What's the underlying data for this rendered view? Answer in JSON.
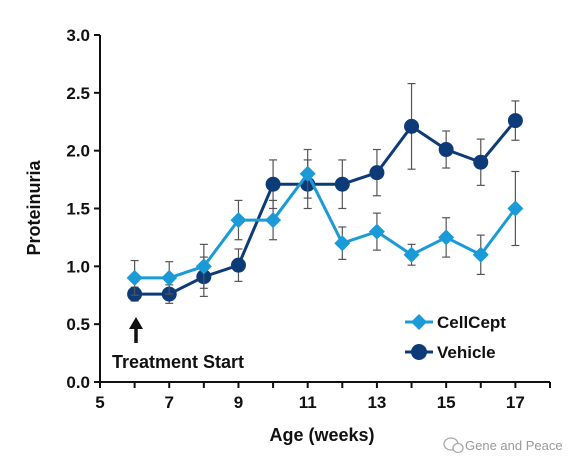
{
  "chart_data": {
    "type": "line",
    "xlabel": "Age (weeks)",
    "ylabel": "Proteinuria",
    "xlim": [
      5,
      18
    ],
    "ylim": [
      0,
      3
    ],
    "x_ticks": [
      "5",
      "7",
      "9",
      "11",
      "13",
      "15",
      "17"
    ],
    "y_ticks": [
      "0.0",
      "0.5",
      "1.0",
      "1.5",
      "2.0",
      "2.5",
      "3.0"
    ],
    "x_tick_values": [
      5,
      7,
      9,
      11,
      13,
      15,
      17
    ],
    "y_tick_values": [
      0,
      0.5,
      1,
      1.5,
      2,
      2.5,
      3
    ],
    "grid": false,
    "legend_position": "bottom-right",
    "annotation": {
      "text": "Treatment Start",
      "x": 6
    },
    "series": [
      {
        "name": "CellCept",
        "marker": "diamond",
        "color": "#1a9ad6",
        "x": [
          6,
          7,
          8,
          9,
          10,
          11,
          12,
          13,
          14,
          15,
          16,
          17
        ],
        "values": [
          0.9,
          0.9,
          1.0,
          1.4,
          1.4,
          1.8,
          1.2,
          1.3,
          1.1,
          1.25,
          1.1,
          1.5
        ],
        "error": [
          0.15,
          0.14,
          0.19,
          0.17,
          0.17,
          0.21,
          0.14,
          0.16,
          0.09,
          0.17,
          0.17,
          0.32
        ]
      },
      {
        "name": "Vehicle",
        "marker": "circle",
        "color": "#0d3b78",
        "x": [
          6,
          7,
          8,
          9,
          10,
          11,
          12,
          13,
          14,
          15,
          16,
          17
        ],
        "values": [
          0.76,
          0.76,
          0.91,
          1.01,
          1.71,
          1.71,
          1.71,
          1.81,
          2.21,
          2.01,
          1.9,
          2.26
        ],
        "error": [
          0.06,
          0.08,
          0.17,
          0.14,
          0.21,
          0.21,
          0.21,
          0.2,
          0.37,
          0.16,
          0.2,
          0.17
        ]
      }
    ]
  },
  "watermark": {
    "text": "Gene and Peace"
  }
}
